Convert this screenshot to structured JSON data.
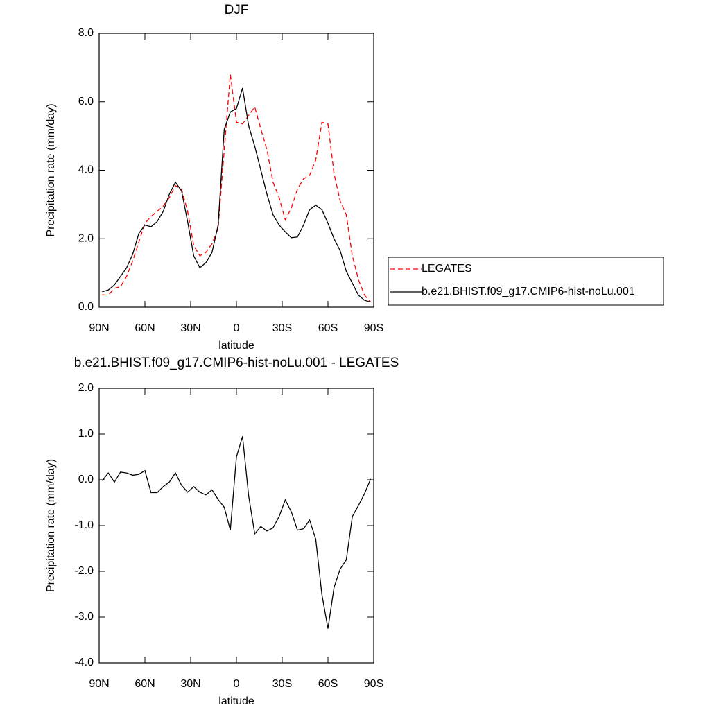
{
  "chart_data": [
    {
      "type": "line",
      "title": "DJF",
      "ylabel": "Precipitation rate (mm/day)",
      "xlabel": "latitude",
      "x": [
        88,
        84,
        80,
        76,
        72,
        68,
        64,
        60,
        56,
        52,
        48,
        44,
        40,
        36,
        32,
        28,
        24,
        20,
        16,
        12,
        8,
        4,
        0,
        -4,
        -8,
        -12,
        -16,
        -20,
        -24,
        -28,
        -32,
        -36,
        -40,
        -44,
        -48,
        -52,
        -56,
        -60,
        -64,
        -68,
        -72,
        -76,
        -80,
        -84,
        -88
      ],
      "xlim": [
        90,
        -90
      ],
      "xticks": [
        {
          "value": 90,
          "label": "90N"
        },
        {
          "value": 60,
          "label": "60N"
        },
        {
          "value": 30,
          "label": "30N"
        },
        0,
        {
          "value": -30,
          "label": "30S"
        },
        {
          "value": -60,
          "label": "60S"
        },
        {
          "value": -90,
          "label": "90S"
        }
      ],
      "ylim": [
        0,
        8
      ],
      "yticks": [
        {
          "value": 0,
          "label": "0.0"
        },
        {
          "value": 2,
          "label": "2.0"
        },
        {
          "value": 4,
          "label": "4.0"
        },
        {
          "value": 6,
          "label": "6.0"
        },
        {
          "value": 8,
          "label": "8.0"
        }
      ],
      "legend": "right",
      "series": [
        {
          "name": "LEGATES",
          "color": "#ff0000",
          "dashed": true,
          "values": [
            0.36,
            0.35,
            0.55,
            0.6,
            0.9,
            1.35,
            1.9,
            2.45,
            2.65,
            2.8,
            2.95,
            3.2,
            3.55,
            3.45,
            2.8,
            1.8,
            1.5,
            1.6,
            1.85,
            2.3,
            4.6,
            6.8,
            5.4,
            5.35,
            5.6,
            5.85,
            5.2,
            4.6,
            3.65,
            3.2,
            2.55,
            2.9,
            3.45,
            3.75,
            3.85,
            4.3,
            5.4,
            5.35,
            3.9,
            3.1,
            2.7,
            1.5,
            0.8,
            0.35,
            0.15
          ]
        },
        {
          "name": "b.e21.BHIST.f09_g17.CMIP6-hist-noLu.001",
          "color": "#000000",
          "dashed": false,
          "values": [
            0.45,
            0.5,
            0.65,
            0.9,
            1.15,
            1.55,
            2.15,
            2.4,
            2.35,
            2.5,
            2.8,
            3.3,
            3.65,
            3.4,
            2.5,
            1.5,
            1.15,
            1.3,
            1.6,
            2.4,
            5.2,
            5.7,
            5.8,
            6.4,
            5.3,
            4.7,
            4.0,
            3.3,
            2.7,
            2.4,
            2.2,
            2.03,
            2.05,
            2.4,
            2.85,
            2.98,
            2.85,
            2.45,
            2.0,
            1.65,
            1.05,
            0.7,
            0.35,
            0.2,
            0.15
          ]
        }
      ]
    },
    {
      "type": "line",
      "title": "b.e21.BHIST.f09_g17.CMIP6-hist-noLu.001 - LEGATES",
      "ylabel": "Precipitation rate (mm/day)",
      "xlabel": "latitude",
      "x": [
        88,
        84,
        80,
        76,
        72,
        68,
        64,
        60,
        56,
        52,
        48,
        44,
        40,
        36,
        32,
        28,
        24,
        20,
        16,
        12,
        8,
        4,
        0,
        -4,
        -8,
        -12,
        -16,
        -20,
        -24,
        -28,
        -32,
        -36,
        -40,
        -44,
        -48,
        -52,
        -56,
        -60,
        -64,
        -68,
        -72,
        -76,
        -80,
        -84,
        -88
      ],
      "xlim": [
        90,
        -90
      ],
      "xticks": [
        {
          "value": 90,
          "label": "90N"
        },
        {
          "value": 60,
          "label": "60N"
        },
        {
          "value": 30,
          "label": "30N"
        },
        0,
        {
          "value": -30,
          "label": "30S"
        },
        {
          "value": -60,
          "label": "60S"
        },
        {
          "value": -90,
          "label": "90S"
        }
      ],
      "ylim": [
        -4,
        2
      ],
      "yticks": [
        {
          "value": -4,
          "label": "-4.0"
        },
        {
          "value": -3,
          "label": "-3.0"
        },
        {
          "value": -2,
          "label": "-2.0"
        },
        {
          "value": -1,
          "label": "-1.0"
        },
        {
          "value": 0,
          "label": "0.0"
        },
        {
          "value": 1,
          "label": "1.0"
        },
        {
          "value": 2,
          "label": "2.0"
        }
      ],
      "series": [
        {
          "color": "#000000",
          "dashed": false,
          "values": [
            -0.02,
            0.15,
            -0.05,
            0.17,
            0.15,
            0.1,
            0.12,
            0.2,
            -0.28,
            -0.28,
            -0.15,
            -0.05,
            0.15,
            -0.12,
            -0.27,
            -0.15,
            -0.27,
            -0.33,
            -0.22,
            -0.43,
            -0.6,
            -1.1,
            0.5,
            0.95,
            -0.35,
            -1.18,
            -1.02,
            -1.12,
            -1.05,
            -0.8,
            -0.44,
            -0.7,
            -1.1,
            -1.07,
            -0.88,
            -1.3,
            -2.5,
            -3.25,
            -2.35,
            -1.95,
            -1.75,
            -0.8,
            -0.56,
            -0.3,
            0.02
          ]
        }
      ]
    }
  ]
}
